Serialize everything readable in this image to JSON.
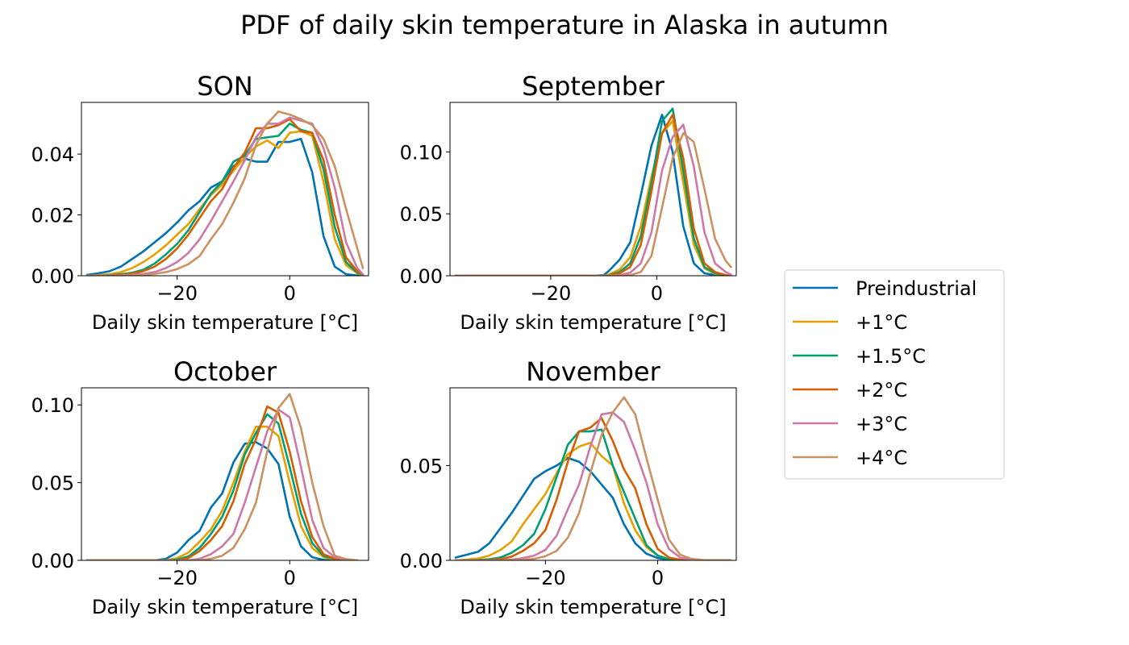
{
  "chart_title": "PDF of daily skin temperature in Alaska in autumn",
  "colors": {
    "Preindustrial": "#0072b2",
    "+1°C": "#e69f00",
    "+1.5°C": "#009e73",
    "+2°C": "#d55e00",
    "+3°C": "#cc79a7",
    "+4°C": "#ca9161"
  },
  "legend": {
    "placement": "right",
    "entries": [
      "Preindustrial",
      "+1°C",
      "+1.5°C",
      "+2°C",
      "+3°C",
      "+4°C"
    ]
  },
  "chart_data": [
    {
      "type": "line",
      "title": "SON",
      "xlabel": "Daily skin temperature [°C]",
      "xlim": [
        -37,
        14
      ],
      "ylim": [
        0,
        0.057
      ],
      "xticks": [
        {
          "v": -20,
          "label": "−20"
        },
        {
          "v": 0,
          "label": "0"
        }
      ],
      "yticks": [
        {
          "v": 0,
          "label": "0.00"
        },
        {
          "v": 0.02,
          "label": "0.02"
        },
        {
          "v": 0.04,
          "label": "0.04"
        }
      ],
      "x": [
        -36,
        -34,
        -32,
        -30,
        -28,
        -26,
        -24,
        -22,
        -20,
        -18,
        -16,
        -14,
        -12,
        -10,
        -8,
        -6,
        -4,
        -2,
        0,
        2,
        4,
        6,
        8,
        10,
        12,
        13
      ],
      "series": [
        {
          "name": "Preindustrial",
          "values": [
            0.0003,
            0.0008,
            0.0015,
            0.003,
            0.0055,
            0.008,
            0.011,
            0.014,
            0.0175,
            0.0215,
            0.0245,
            0.029,
            0.031,
            0.036,
            0.0385,
            0.0375,
            0.0375,
            0.044,
            0.044,
            0.045,
            0.034,
            0.013,
            0.003,
            0.0005,
            0.0001,
            0.0
          ]
        },
        {
          "name": "+1°C",
          "values": [
            0.0,
            0.0002,
            0.0005,
            0.0012,
            0.0025,
            0.0045,
            0.007,
            0.01,
            0.0135,
            0.017,
            0.022,
            0.0265,
            0.03,
            0.0345,
            0.039,
            0.0425,
            0.0445,
            0.042,
            0.047,
            0.0475,
            0.046,
            0.031,
            0.012,
            0.0035,
            0.0008,
            0.0001
          ]
        },
        {
          "name": "+1.5°C",
          "values": [
            0.0,
            0.0,
            0.0002,
            0.0005,
            0.001,
            0.002,
            0.004,
            0.007,
            0.0105,
            0.015,
            0.021,
            0.027,
            0.031,
            0.0375,
            0.0395,
            0.045,
            0.0455,
            0.046,
            0.05,
            0.048,
            0.047,
            0.035,
            0.016,
            0.0045,
            0.001,
            0.0002
          ]
        },
        {
          "name": "+2°C",
          "values": [
            0.0,
            0.0,
            0.0001,
            0.0003,
            0.0007,
            0.0015,
            0.003,
            0.0055,
            0.009,
            0.0135,
            0.019,
            0.0245,
            0.0285,
            0.0355,
            0.0405,
            0.0485,
            0.0485,
            0.0495,
            0.0515,
            0.0475,
            0.047,
            0.038,
            0.02,
            0.006,
            0.0015,
            0.0003
          ]
        },
        {
          "name": "+3°C",
          "values": [
            0.0,
            0.0,
            0.0,
            0.0001,
            0.0003,
            0.0006,
            0.0012,
            0.0025,
            0.0045,
            0.0075,
            0.012,
            0.018,
            0.0245,
            0.031,
            0.038,
            0.0455,
            0.05,
            0.05,
            0.052,
            0.051,
            0.05,
            0.042,
            0.029,
            0.011,
            0.0025,
            0.0005
          ]
        },
        {
          "name": "+4°C",
          "values": [
            0.0,
            0.0,
            0.0,
            0.0,
            0.0001,
            0.0003,
            0.0006,
            0.0012,
            0.0022,
            0.0038,
            0.0065,
            0.012,
            0.017,
            0.024,
            0.032,
            0.043,
            0.05,
            0.054,
            0.053,
            0.0515,
            0.0495,
            0.045,
            0.036,
            0.022,
            0.009,
            0.0025
          ]
        }
      ]
    },
    {
      "type": "line",
      "title": "September",
      "xlabel": "Daily skin temperature [°C]",
      "xlim": [
        -39,
        15
      ],
      "ylim": [
        0,
        0.14
      ],
      "xticks": [
        {
          "v": -20,
          "label": "−20"
        },
        {
          "v": 0,
          "label": "0"
        }
      ],
      "yticks": [
        {
          "v": 0,
          "label": "0.00"
        },
        {
          "v": 0.05,
          "label": "0.05"
        },
        {
          "v": 0.1,
          "label": "0.10"
        }
      ],
      "x": [
        -38,
        -36,
        -34,
        -32,
        -30,
        -28,
        -26,
        -24,
        -22,
        -20,
        -18,
        -16,
        -14,
        -12,
        -10,
        -9,
        -7,
        -5,
        -3,
        -1,
        1,
        3,
        5,
        7,
        9,
        11,
        13,
        14
      ],
      "series": [
        {
          "name": "Preindustrial",
          "values": [
            0.0,
            0.0,
            0.0,
            0.0,
            0.0,
            0.0,
            0.0,
            0.0,
            0.0,
            0.0,
            0.0,
            0.0,
            0.0,
            0.0,
            0.0005,
            0.004,
            0.013,
            0.027,
            0.065,
            0.105,
            0.13,
            0.1,
            0.04,
            0.01,
            0.002,
            0.0005,
            0.0,
            0.0
          ]
        },
        {
          "name": "+1°C",
          "values": [
            0.0,
            0.0,
            0.0,
            0.0,
            0.0,
            0.0,
            0.0,
            0.0,
            0.0,
            0.0,
            0.0,
            0.0,
            0.0,
            0.0,
            0.0,
            0.001,
            0.005,
            0.015,
            0.04,
            0.08,
            0.115,
            0.125,
            0.075,
            0.025,
            0.006,
            0.0015,
            0.0002,
            0.0
          ]
        },
        {
          "name": "+1.5°C",
          "values": [
            0.0,
            0.0,
            0.0,
            0.0,
            0.0,
            0.0,
            0.0,
            0.0,
            0.0,
            0.0,
            0.0,
            0.0,
            0.0,
            0.0,
            0.0,
            0.0005,
            0.003,
            0.01,
            0.032,
            0.075,
            0.125,
            0.135,
            0.085,
            0.03,
            0.007,
            0.002,
            0.0003,
            0.0
          ]
        },
        {
          "name": "+2°C",
          "values": [
            0.0,
            0.0,
            0.0,
            0.0,
            0.0,
            0.0,
            0.0,
            0.0,
            0.0,
            0.0,
            0.0,
            0.0,
            0.0,
            0.0,
            0.0,
            0.0003,
            0.002,
            0.007,
            0.025,
            0.068,
            0.115,
            0.13,
            0.095,
            0.038,
            0.01,
            0.003,
            0.0005,
            0.0
          ]
        },
        {
          "name": "+3°C",
          "values": [
            0.0,
            0.0,
            0.0,
            0.0,
            0.0,
            0.0,
            0.0,
            0.0,
            0.0,
            0.0,
            0.0,
            0.0,
            0.0,
            0.0,
            0.0,
            0.0,
            0.0005,
            0.0025,
            0.01,
            0.035,
            0.085,
            0.112,
            0.122,
            0.088,
            0.035,
            0.01,
            0.003,
            0.001
          ]
        },
        {
          "name": "+4°C",
          "values": [
            0.0,
            0.0,
            0.0,
            0.0,
            0.0,
            0.0,
            0.0,
            0.0,
            0.0,
            0.0,
            0.0,
            0.0,
            0.0,
            0.0,
            0.0,
            0.0,
            0.0,
            0.0005,
            0.003,
            0.016,
            0.055,
            0.095,
            0.115,
            0.108,
            0.07,
            0.03,
            0.012,
            0.007
          ]
        }
      ]
    },
    {
      "type": "line",
      "title": "October",
      "xlabel": "Daily skin temperature [°C]",
      "xlim": [
        -37,
        14
      ],
      "ylim": [
        0,
        0.111
      ],
      "xticks": [
        {
          "v": -20,
          "label": "−20"
        },
        {
          "v": 0,
          "label": "0"
        }
      ],
      "yticks": [
        {
          "v": 0,
          "label": "0.00"
        },
        {
          "v": 0.05,
          "label": "0.05"
        },
        {
          "v": 0.1,
          "label": "0.10"
        }
      ],
      "x": [
        -36,
        -34,
        -32,
        -30,
        -28,
        -26,
        -24,
        -22,
        -20,
        -18,
        -16,
        -14,
        -12,
        -10,
        -8,
        -6,
        -4,
        -2,
        0,
        2,
        4,
        6,
        8,
        10,
        12
      ],
      "series": [
        {
          "name": "Preindustrial",
          "values": [
            0.0,
            0.0,
            0.0,
            0.0,
            0.0,
            0.0,
            0.0,
            0.001,
            0.005,
            0.013,
            0.019,
            0.034,
            0.043,
            0.063,
            0.075,
            0.076,
            0.072,
            0.062,
            0.028,
            0.009,
            0.002,
            0.0003,
            0.0,
            0.0,
            0.0
          ]
        },
        {
          "name": "+1°C",
          "values": [
            0.0,
            0.0,
            0.0,
            0.0,
            0.0,
            0.0,
            0.0,
            0.0,
            0.0015,
            0.005,
            0.012,
            0.02,
            0.032,
            0.05,
            0.07,
            0.086,
            0.086,
            0.08,
            0.05,
            0.022,
            0.008,
            0.002,
            0.0005,
            0.0,
            0.0
          ]
        },
        {
          "name": "+1.5°C",
          "values": [
            0.0,
            0.0,
            0.0,
            0.0,
            0.0,
            0.0,
            0.0,
            0.0,
            0.0005,
            0.0025,
            0.008,
            0.017,
            0.028,
            0.045,
            0.068,
            0.082,
            0.094,
            0.088,
            0.06,
            0.03,
            0.011,
            0.003,
            0.0008,
            0.0,
            0.0
          ]
        },
        {
          "name": "+2°C",
          "values": [
            0.0,
            0.0,
            0.0,
            0.0,
            0.0,
            0.0,
            0.0,
            0.0,
            0.0,
            0.0015,
            0.006,
            0.013,
            0.022,
            0.038,
            0.062,
            0.078,
            0.099,
            0.095,
            0.07,
            0.038,
            0.015,
            0.004,
            0.001,
            0.0002,
            0.0
          ]
        },
        {
          "name": "+3°C",
          "values": [
            0.0,
            0.0,
            0.0,
            0.0,
            0.0,
            0.0,
            0.0,
            0.0,
            0.0,
            0.0,
            0.001,
            0.004,
            0.009,
            0.017,
            0.037,
            0.06,
            0.083,
            0.097,
            0.092,
            0.06,
            0.026,
            0.008,
            0.002,
            0.0003,
            0.0
          ]
        },
        {
          "name": "+4°C",
          "values": [
            0.0,
            0.0,
            0.0,
            0.0,
            0.0,
            0.0,
            0.0,
            0.0,
            0.0,
            0.0,
            0.0,
            0.001,
            0.003,
            0.008,
            0.02,
            0.037,
            0.07,
            0.098,
            0.107,
            0.085,
            0.05,
            0.022,
            0.003,
            0.0008,
            0.0
          ]
        }
      ]
    },
    {
      "type": "line",
      "title": "November",
      "xlabel": "Daily skin temperature [°C]",
      "xlim": [
        -37,
        14
      ],
      "ylim": [
        0,
        0.091
      ],
      "xticks": [
        {
          "v": -20,
          "label": "−20"
        },
        {
          "v": 0,
          "label": "0"
        }
      ],
      "yticks": [
        {
          "v": 0,
          "label": "0.00"
        },
        {
          "v": 0.05,
          "label": "0.05"
        }
      ],
      "x": [
        -36,
        -34,
        -32,
        -30,
        -28,
        -26,
        -24,
        -22,
        -20,
        -18,
        -16,
        -14,
        -12,
        -10,
        -8,
        -6,
        -4,
        -2,
        0,
        2,
        4,
        6,
        8,
        10,
        12,
        13
      ],
      "series": [
        {
          "name": "Preindustrial",
          "values": [
            0.0015,
            0.003,
            0.0045,
            0.009,
            0.017,
            0.025,
            0.034,
            0.043,
            0.047,
            0.05,
            0.054,
            0.052,
            0.047,
            0.04,
            0.033,
            0.019,
            0.009,
            0.0035,
            0.0012,
            0.0003,
            0.0,
            0.0,
            0.0,
            0.0,
            0.0,
            0.0
          ]
        },
        {
          "name": "+1°C",
          "values": [
            0.0,
            0.0004,
            0.001,
            0.0025,
            0.0055,
            0.01,
            0.019,
            0.027,
            0.035,
            0.046,
            0.056,
            0.06,
            0.062,
            0.055,
            0.05,
            0.03,
            0.016,
            0.007,
            0.0025,
            0.0007,
            0.0001,
            0.0,
            0.0,
            0.0,
            0.0,
            0.0
          ]
        },
        {
          "name": "+1.5°C",
          "values": [
            0.0,
            0.0,
            0.0002,
            0.0006,
            0.0015,
            0.004,
            0.008,
            0.014,
            0.027,
            0.044,
            0.061,
            0.068,
            0.068,
            0.069,
            0.05,
            0.036,
            0.022,
            0.008,
            0.0025,
            0.0006,
            0.0001,
            0.0,
            0.0,
            0.0,
            0.0,
            0.0
          ]
        },
        {
          "name": "+2°C",
          "values": [
            0.0,
            0.0,
            0.0,
            0.0002,
            0.0007,
            0.002,
            0.005,
            0.009,
            0.016,
            0.032,
            0.052,
            0.068,
            0.07,
            0.075,
            0.063,
            0.048,
            0.038,
            0.019,
            0.006,
            0.0015,
            0.0003,
            0.0,
            0.0,
            0.0,
            0.0,
            0.0
          ]
        },
        {
          "name": "+3°C",
          "values": [
            0.0,
            0.0,
            0.0,
            0.0,
            0.0001,
            0.0004,
            0.0012,
            0.0025,
            0.0055,
            0.013,
            0.027,
            0.04,
            0.06,
            0.077,
            0.078,
            0.073,
            0.058,
            0.041,
            0.019,
            0.006,
            0.0015,
            0.0003,
            0.0,
            0.0,
            0.0,
            0.0
          ]
        },
        {
          "name": "+4°C",
          "values": [
            0.0,
            0.0,
            0.0,
            0.0,
            0.0,
            0.0001,
            0.0003,
            0.0008,
            0.0022,
            0.005,
            0.012,
            0.025,
            0.046,
            0.066,
            0.078,
            0.086,
            0.077,
            0.054,
            0.032,
            0.011,
            0.003,
            0.0008,
            0.0002,
            0.0,
            0.0,
            0.0
          ]
        }
      ]
    }
  ]
}
